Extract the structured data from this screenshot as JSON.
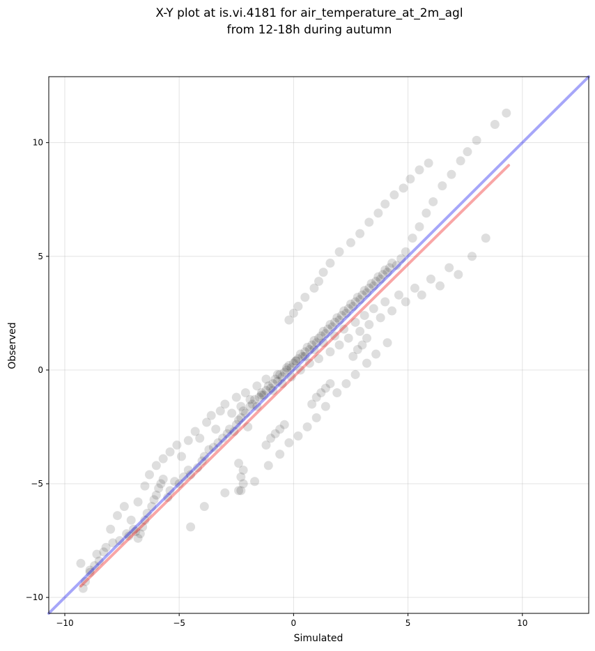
{
  "chart_data": {
    "type": "scatter",
    "title": [
      "X-Y plot at is.vi.4181 for air_temperature_at_2m_agl",
      "from 12-18h during autumn"
    ],
    "xlabel": "Simulated",
    "ylabel": "Observed",
    "xlim": [
      -10.7,
      12.9
    ],
    "ylim": [
      -10.7,
      12.9
    ],
    "xticks": [
      -10,
      -5,
      0,
      5,
      10
    ],
    "yticks": [
      -10,
      -5,
      0,
      5,
      10
    ],
    "xtick_labels": [
      "−10",
      "−5",
      "0",
      "5",
      "10"
    ],
    "ytick_labels": [
      "−10",
      "−5",
      "0",
      "5",
      "10"
    ],
    "grid": true,
    "points": {
      "color": "#000000",
      "alpha": 0.13,
      "x": [
        -9.3,
        -9.1,
        -8.9,
        -8.7,
        -8.5,
        -8.3,
        -8.2,
        -7.9,
        -7.6,
        -7.3,
        -7.2,
        -7.0,
        -6.9,
        -6.8,
        -6.7,
        -6.6,
        -6.5,
        -6.4,
        -6.2,
        -6.1,
        -6.0,
        -5.9,
        -5.8,
        -5.7,
        -5.5,
        -5.4,
        -5.2,
        -5.0,
        -4.8,
        -4.6,
        -4.5,
        -4.2,
        -4.0,
        -3.9,
        -3.7,
        -3.5,
        -3.3,
        -3.1,
        -2.9,
        -2.8,
        -2.6,
        -2.5,
        -2.4,
        -2.3,
        -2.2,
        -2.1,
        -2.0,
        -1.9,
        -1.8,
        -1.7,
        -1.6,
        -1.5,
        -1.4,
        -1.3,
        -1.2,
        -1.1,
        -1.0,
        -0.9,
        -0.8,
        -0.7,
        -0.6,
        -0.5,
        -0.4,
        -0.3,
        -0.2,
        -0.1,
        0.0,
        0.1,
        0.2,
        0.3,
        0.4,
        0.5,
        0.6,
        0.7,
        0.8,
        0.9,
        1.0,
        1.1,
        1.2,
        1.3,
        1.4,
        1.5,
        1.6,
        1.7,
        1.8,
        1.9,
        2.0,
        2.1,
        2.2,
        2.3,
        2.4,
        2.5,
        2.6,
        2.7,
        2.8,
        2.9,
        3.0,
        3.1,
        3.2,
        3.3,
        3.4,
        3.5,
        3.6,
        3.7,
        3.8,
        3.9,
        4.0,
        4.1,
        4.2,
        4.3,
        4.5,
        4.7,
        4.9,
        5.2,
        5.5,
        5.8,
        6.1,
        6.5,
        6.9,
        7.3,
        7.6,
        8.0,
        8.8,
        9.3,
        -9.2,
        -8.9,
        -8.6,
        -8.0,
        -7.7,
        -7.4,
        -7.1,
        -6.8,
        -6.5,
        -6.3,
        -6.0,
        -5.7,
        -5.4,
        -5.1,
        -4.9,
        -4.6,
        -4.3,
        -4.1,
        -3.8,
        -3.6,
        -3.4,
        -3.2,
        -3.0,
        -2.7,
        -2.5,
        -2.3,
        -2.1,
        -1.9,
        -1.6,
        -1.4,
        -1.2,
        -0.9,
        -0.7,
        -0.5,
        -0.3,
        -0.1,
        0.1,
        0.3,
        0.5,
        0.7,
        0.9,
        1.1,
        1.3,
        1.6,
        1.8,
        2.0,
        2.2,
        2.4,
        2.7,
        2.9,
        3.1,
        3.3,
        3.5,
        3.8,
        4.0,
        4.3,
        4.6,
        4.9,
        5.3,
        5.6,
        6.0,
        6.4,
        6.8,
        7.2,
        7.8,
        8.4,
        -4.5,
        -3.9,
        -3.0,
        -2.4,
        -1.7,
        -1.1,
        -0.6,
        -0.2,
        0.2,
        0.6,
        1.0,
        1.4,
        1.9,
        2.3,
        2.7,
        3.2,
        3.6,
        4.1,
        -2.3,
        -2.2,
        -2.3,
        -2.2,
        -2.4,
        -1.2,
        -1.0,
        -0.8,
        -0.6,
        -0.4,
        0.8,
        1.0,
        1.2,
        1.4,
        1.6,
        2.6,
        2.8,
        3.0,
        3.2,
        -0.2,
        0.0,
        0.2,
        0.5,
        0.9,
        1.1,
        1.3,
        1.6,
        2.0,
        2.5,
        2.9,
        3.3,
        3.7,
        4.0,
        4.4,
        4.8,
        5.1,
        5.5,
        5.9
      ],
      "y": [
        -8.5,
        -9.3,
        -8.9,
        -8.6,
        -8.4,
        -8.0,
        -7.8,
        -7.6,
        -7.5,
        -7.2,
        -7.3,
        -7.0,
        -7.1,
        -7.4,
        -7.2,
        -6.9,
        -6.6,
        -6.3,
        -6.0,
        -5.7,
        -5.5,
        -5.2,
        -5.0,
        -4.8,
        -5.6,
        -5.3,
        -4.9,
        -5.0,
        -4.7,
        -4.4,
        -4.6,
        -4.3,
        -4.0,
        -3.8,
        -3.5,
        -3.4,
        -3.2,
        -3.0,
        -2.8,
        -2.6,
        -2.7,
        -2.4,
        -2.2,
        -2.1,
        -1.8,
        -1.9,
        -2.5,
        -1.6,
        -1.5,
        -1.3,
        -1.6,
        -1.2,
        -1.0,
        -1.1,
        -0.9,
        -0.7,
        -0.8,
        -0.6,
        -0.4,
        -0.5,
        -0.2,
        -0.3,
        -0.1,
        0.0,
        0.2,
        0.1,
        0.3,
        0.4,
        0.5,
        0.7,
        0.6,
        0.8,
        1.0,
        0.9,
        1.1,
        1.3,
        1.2,
        1.4,
        1.5,
        1.7,
        1.6,
        1.8,
        2.0,
        1.9,
        2.1,
        2.3,
        2.2,
        2.4,
        2.6,
        2.5,
        2.7,
        2.9,
        2.8,
        3.0,
        3.2,
        3.1,
        3.3,
        3.5,
        3.4,
        3.6,
        3.8,
        3.7,
        3.9,
        4.1,
        4.0,
        4.2,
        4.4,
        4.3,
        4.5,
        4.7,
        4.6,
        4.9,
        5.2,
        5.8,
        6.3,
        6.9,
        7.4,
        8.1,
        8.6,
        9.2,
        9.6,
        10.1,
        10.8,
        11.3,
        -9.6,
        -8.8,
        -8.1,
        -7.0,
        -6.4,
        -6.0,
        -6.6,
        -5.8,
        -5.1,
        -4.6,
        -4.2,
        -3.9,
        -3.6,
        -3.3,
        -3.8,
        -3.1,
        -2.7,
        -3.0,
        -2.3,
        -2.0,
        -2.6,
        -1.8,
        -1.5,
        -1.9,
        -1.2,
        -1.6,
        -1.0,
        -1.3,
        -0.7,
        -1.1,
        -0.4,
        -0.9,
        -0.2,
        -0.6,
        0.1,
        -0.3,
        0.4,
        0.0,
        0.6,
        0.3,
        0.9,
        0.5,
        1.2,
        0.8,
        1.5,
        1.1,
        1.8,
        1.4,
        2.1,
        1.7,
        2.4,
        2.0,
        2.7,
        2.3,
        3.0,
        2.6,
        3.3,
        3.0,
        3.6,
        3.3,
        4.0,
        3.7,
        4.5,
        4.2,
        5.0,
        5.8,
        -6.9,
        -6.0,
        -5.4,
        -5.3,
        -4.9,
        -4.2,
        -3.7,
        -3.2,
        -2.9,
        -2.5,
        -2.1,
        -1.6,
        -1.0,
        -0.6,
        -0.2,
        0.3,
        0.7,
        1.2,
        -5.3,
        -5.0,
        -4.7,
        -4.4,
        -4.1,
        -3.3,
        -3.0,
        -2.8,
        -2.6,
        -2.4,
        -1.5,
        -1.2,
        -1.0,
        -0.8,
        -0.6,
        0.6,
        0.9,
        1.1,
        1.4,
        2.2,
        2.5,
        2.8,
        3.2,
        3.6,
        3.9,
        4.3,
        4.7,
        5.2,
        5.6,
        6.0,
        6.5,
        6.9,
        7.3,
        7.7,
        8.0,
        8.4,
        8.8,
        9.1
      ]
    },
    "lines": [
      {
        "color": "#0000ee",
        "alpha": 0.35,
        "x": [
          -10.7,
          12.9
        ],
        "y": [
          -10.7,
          12.9
        ]
      },
      {
        "color": "#ee0000",
        "alpha": 0.35,
        "x": [
          -9.3,
          9.4
        ],
        "y": [
          -9.5,
          9.0
        ]
      }
    ]
  }
}
